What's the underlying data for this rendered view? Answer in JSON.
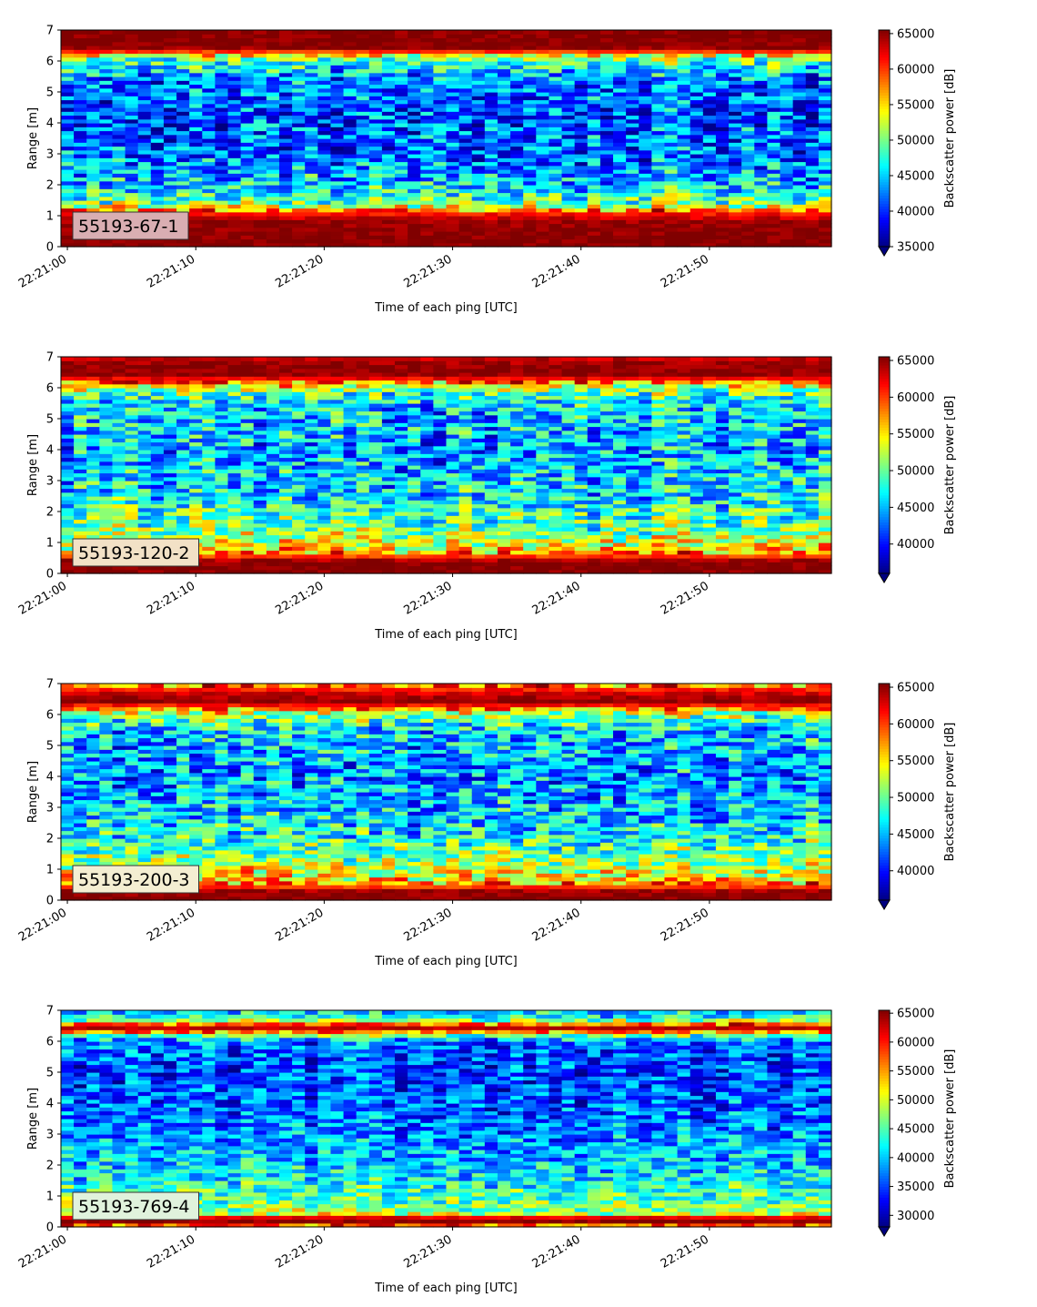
{
  "chart_data": [
    {
      "type": "heatmap",
      "label": "55193-67-1",
      "label_color": "#d9aeb2",
      "xlabel": "Time of each ping [UTC]",
      "ylabel": "Range [m]",
      "ylim": [
        0,
        7
      ],
      "yticks": [
        "0",
        "1",
        "2",
        "3",
        "4",
        "5",
        "6",
        "7"
      ],
      "xticks": [
        "22:21:00",
        "22:21:10",
        "22:21:20",
        "22:21:30",
        "22:21:40",
        "22:21:50"
      ],
      "xrange_seconds": [
        -0.5,
        59.5
      ],
      "colorbar": {
        "label": "Backscatter power [dB]",
        "vmin": 35000,
        "vmax": 65500,
        "extend": "min",
        "ticks": [
          "35000",
          "40000",
          "45000",
          "50000",
          "55000",
          "60000",
          "65000"
        ]
      },
      "profile": [
        {
          "range": 0.0,
          "value": 65500
        },
        {
          "range": 0.25,
          "value": 65500
        },
        {
          "range": 0.8,
          "value": 65000
        },
        {
          "range": 1.1,
          "value": 61000
        },
        {
          "range": 1.4,
          "value": 50000
        },
        {
          "range": 2.0,
          "value": 45000
        },
        {
          "range": 3.0,
          "value": 42000
        },
        {
          "range": 4.5,
          "value": 41000
        },
        {
          "range": 5.5,
          "value": 43000
        },
        {
          "range": 6.1,
          "value": 50000
        },
        {
          "range": 6.35,
          "value": 62000
        },
        {
          "range": 6.45,
          "value": 65500
        },
        {
          "range": 7.0,
          "value": 65500
        }
      ]
    },
    {
      "type": "heatmap",
      "label": "55193-120-2",
      "label_color": "#f2e1c6",
      "xlabel": "Time of each ping [UTC]",
      "ylabel": "Range [m]",
      "ylim": [
        0,
        7
      ],
      "yticks": [
        "0",
        "1",
        "2",
        "3",
        "4",
        "5",
        "6",
        "7"
      ],
      "xticks": [
        "22:21:00",
        "22:21:10",
        "22:21:20",
        "22:21:30",
        "22:21:40",
        "22:21:50"
      ],
      "xrange_seconds": [
        -0.5,
        59.5
      ],
      "colorbar": {
        "label": "Backscatter power [dB]",
        "vmin": 36000,
        "vmax": 65500,
        "extend": "min",
        "ticks": [
          "40000",
          "45000",
          "50000",
          "55000",
          "60000",
          "65000"
        ]
      },
      "profile": [
        {
          "range": 0.0,
          "value": 65500
        },
        {
          "range": 0.4,
          "value": 65500
        },
        {
          "range": 0.6,
          "value": 59000
        },
        {
          "range": 0.9,
          "value": 54000
        },
        {
          "range": 1.5,
          "value": 50000
        },
        {
          "range": 2.5,
          "value": 46500
        },
        {
          "range": 4.0,
          "value": 44500
        },
        {
          "range": 5.5,
          "value": 46000
        },
        {
          "range": 6.0,
          "value": 52000
        },
        {
          "range": 6.3,
          "value": 62000
        },
        {
          "range": 6.45,
          "value": 65500
        },
        {
          "range": 6.75,
          "value": 65000
        },
        {
          "range": 7.0,
          "value": 63000
        }
      ]
    },
    {
      "type": "heatmap",
      "label": "55193-200-3",
      "label_color": "#f4eed2",
      "xlabel": "Time of each ping [UTC]",
      "ylabel": "Range [m]",
      "ylim": [
        0,
        7
      ],
      "yticks": [
        "0",
        "1",
        "2",
        "3",
        "4",
        "5",
        "6",
        "7"
      ],
      "xticks": [
        "22:21:00",
        "22:21:10",
        "22:21:20",
        "22:21:30",
        "22:21:40",
        "22:21:50"
      ],
      "xrange_seconds": [
        -0.5,
        59.5
      ],
      "colorbar": {
        "label": "Backscatter power [dB]",
        "vmin": 36000,
        "vmax": 65500,
        "extend": "min",
        "ticks": [
          "40000",
          "45000",
          "50000",
          "55000",
          "60000",
          "65000"
        ]
      },
      "profile": [
        {
          "range": 0.0,
          "value": 65500
        },
        {
          "range": 0.3,
          "value": 65000
        },
        {
          "range": 0.5,
          "value": 58000
        },
        {
          "range": 0.9,
          "value": 54000
        },
        {
          "range": 1.5,
          "value": 50000
        },
        {
          "range": 2.5,
          "value": 46000
        },
        {
          "range": 4.0,
          "value": 44000
        },
        {
          "range": 5.5,
          "value": 45500
        },
        {
          "range": 6.0,
          "value": 51000
        },
        {
          "range": 6.25,
          "value": 60000
        },
        {
          "range": 6.45,
          "value": 65500
        },
        {
          "range": 6.7,
          "value": 63000
        },
        {
          "range": 7.0,
          "value": 58000
        }
      ]
    },
    {
      "type": "heatmap",
      "label": "55193-769-4",
      "label_color": "#e0f2dc",
      "xlabel": "Time of each ping [UTC]",
      "ylabel": "Range [m]",
      "ylim": [
        0,
        7
      ],
      "yticks": [
        "0",
        "1",
        "2",
        "3",
        "4",
        "5",
        "6",
        "7"
      ],
      "xticks": [
        "22:21:00",
        "22:21:10",
        "22:21:20",
        "22:21:30",
        "22:21:40",
        "22:21:50"
      ],
      "xrange_seconds": [
        -0.5,
        59.5
      ],
      "colorbar": {
        "label": "Backscatter power [dB]",
        "vmin": 28000,
        "vmax": 65500,
        "extend": "min",
        "ticks": [
          "30000",
          "35000",
          "40000",
          "45000",
          "50000",
          "55000",
          "60000",
          "65000"
        ]
      },
      "profile": [
        {
          "range": 0.0,
          "value": 52000
        },
        {
          "range": 0.15,
          "value": 65500
        },
        {
          "range": 0.3,
          "value": 63000
        },
        {
          "range": 0.45,
          "value": 48000
        },
        {
          "range": 1.0,
          "value": 44500
        },
        {
          "range": 2.0,
          "value": 40000
        },
        {
          "range": 3.5,
          "value": 36500
        },
        {
          "range": 5.0,
          "value": 35000
        },
        {
          "range": 6.0,
          "value": 36500
        },
        {
          "range": 6.25,
          "value": 48000
        },
        {
          "range": 6.4,
          "value": 65000
        },
        {
          "range": 6.55,
          "value": 58000
        },
        {
          "range": 6.75,
          "value": 42000
        },
        {
          "range": 7.0,
          "value": 40000
        }
      ]
    }
  ]
}
